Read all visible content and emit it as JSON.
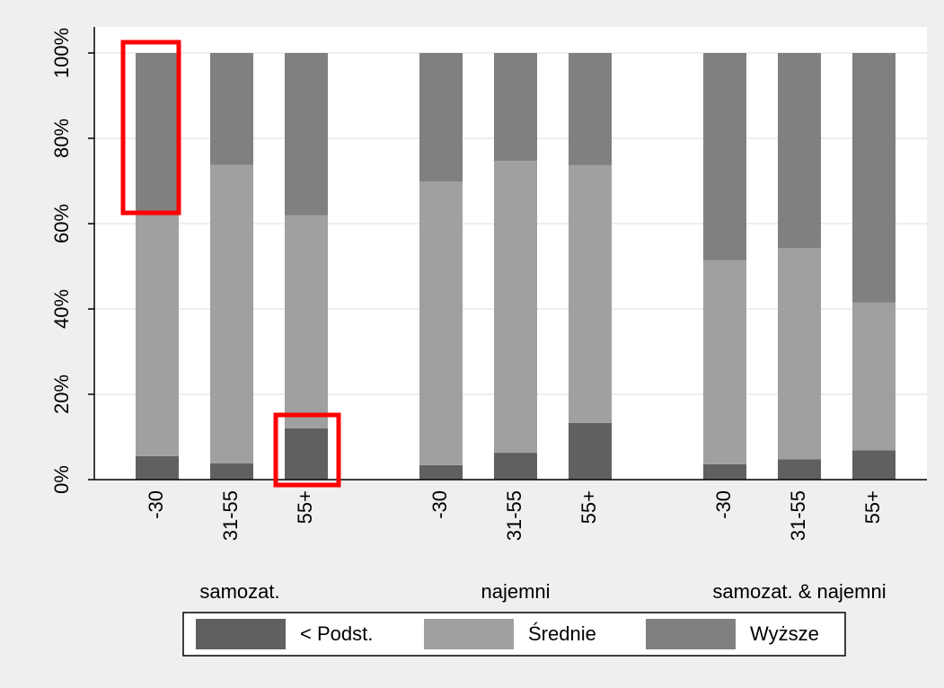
{
  "chart_data": {
    "type": "stacked_bar",
    "groups": [
      "samozat.",
      "najemni",
      "samozat. & najemni"
    ],
    "categories": [
      "-30",
      "31-55",
      "55+",
      "-30",
      "31-55",
      "55+",
      "-30",
      "31-55",
      "55+"
    ],
    "series": [
      {
        "name": "< Podst.",
        "color": "#606060",
        "values": [
          5.5,
          3.8,
          12,
          3.4,
          6.3,
          13.3,
          3.6,
          4.8,
          6.9
        ]
      },
      {
        "name": "Średnie",
        "color": "#a0a0a0",
        "values": [
          56.5,
          70,
          50,
          66.5,
          68.4,
          60.4,
          47.8,
          49.5,
          34.6
        ]
      },
      {
        "name": "Wyższe",
        "color": "#808080",
        "values": [
          38,
          26.2,
          38,
          30.1,
          25.3,
          26.3,
          48.6,
          45.7,
          58.5
        ]
      }
    ],
    "ylim": [
      0,
      100
    ],
    "yticks": [
      {
        "value": 0,
        "label": "0%"
      },
      {
        "value": 20,
        "label": "20%"
      },
      {
        "value": 40,
        "label": "40%"
      },
      {
        "value": 60,
        "label": "60%"
      },
      {
        "value": 80,
        "label": "80%"
      },
      {
        "value": 100,
        "label": "100%"
      }
    ],
    "grid": true
  }
}
